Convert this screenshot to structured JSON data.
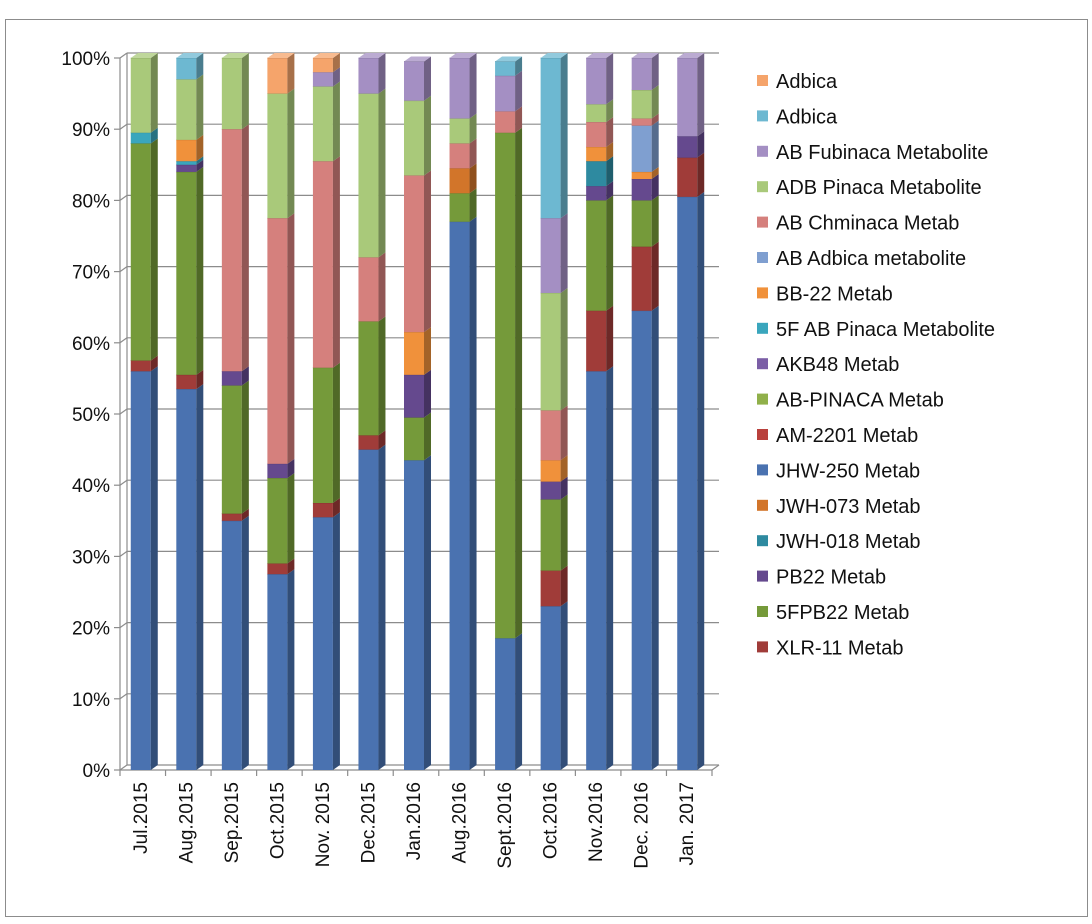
{
  "chart_data": {
    "type": "bar",
    "stacked": true,
    "percent_stacked": true,
    "style": "3d-column",
    "title": "",
    "xlabel": "",
    "ylabel": "",
    "ylim": [
      0,
      100
    ],
    "y_tick_labels": [
      "0%",
      "10%",
      "20%",
      "30%",
      "40%",
      "50%",
      "60%",
      "70%",
      "80%",
      "90%",
      "100%"
    ],
    "grid": "horizontal",
    "legend_position": "right",
    "categories": [
      "Jul.2015",
      "Aug.2015",
      "Sep.2015",
      "Oct.2015",
      "Nov. 2015",
      "Dec.2015",
      "Jan.2016",
      "Aug.2016",
      "Sept.2016",
      "Oct.2016",
      "Nov.2016",
      "Dec. 2016",
      "Jan. 2017"
    ],
    "series": [
      {
        "name": "JHW-250 Metab",
        "color": "#4a72b0",
        "values": [
          56,
          53.5,
          35,
          27.5,
          35.5,
          45,
          43.5,
          77,
          18.5,
          23,
          56,
          64.5,
          80.5
        ]
      },
      {
        "name": "XLR-11 Metab",
        "color": "#a03c39",
        "values": [
          1.5,
          2,
          1,
          1.5,
          2,
          2,
          0,
          0,
          0,
          5,
          8.5,
          9,
          5.5
        ]
      },
      {
        "name": "5FPB22 Metab",
        "color": "#759a3a",
        "values": [
          30.5,
          28.5,
          18,
          12,
          19,
          16,
          6,
          4,
          71,
          10,
          15.5,
          6.5,
          0
        ]
      },
      {
        "name": "PB22 Metab",
        "color": "#65498e",
        "values": [
          0,
          1,
          2,
          2,
          0,
          0,
          6,
          0,
          0,
          2.5,
          2,
          3,
          3
        ]
      },
      {
        "name": "JWH-018 Metab",
        "color": "#2e8aa0",
        "values": [
          0,
          0,
          0,
          0,
          0,
          0,
          0,
          0,
          0,
          0,
          3.5,
          0,
          0
        ]
      },
      {
        "name": "JWH-073 Metab",
        "color": "#d2752a",
        "values": [
          0,
          0,
          0,
          0,
          0,
          0,
          0,
          3.5,
          0,
          0,
          0,
          0,
          0
        ]
      },
      {
        "name": "JHW-250 Metab",
        "color": "#4a72b0",
        "values": [
          0,
          0,
          0,
          0,
          0,
          0,
          0,
          0,
          0,
          0,
          0,
          0,
          0
        ]
      },
      {
        "name": "AM-2201 Metab",
        "color": "#b9403c",
        "values": [
          0,
          0,
          0,
          0,
          0,
          0,
          0,
          0,
          0,
          0,
          0,
          0,
          0
        ]
      },
      {
        "name": "AB-PINACA Metab",
        "color": "#90b04a",
        "values": [
          0,
          0,
          0,
          0,
          0,
          0,
          0,
          0,
          0,
          0,
          0,
          0,
          0
        ]
      },
      {
        "name": "AKB48 Metab",
        "color": "#7b5ea6",
        "values": [
          0,
          0,
          0,
          0,
          0,
          0,
          0,
          0,
          0,
          0,
          0,
          0,
          0
        ]
      },
      {
        "name": "5F AB Pinaca Metabolite",
        "color": "#3aa6bd",
        "values": [
          1.5,
          0.5,
          0,
          0,
          0,
          0,
          0,
          0,
          0,
          0,
          0,
          0,
          0
        ]
      },
      {
        "name": "BB-22 Metab",
        "color": "#f0913b",
        "values": [
          0,
          3,
          0,
          0,
          0,
          0,
          6,
          0,
          0,
          3,
          2,
          1,
          0
        ]
      },
      {
        "name": "AB Adbica metabolite",
        "color": "#7f9fd0",
        "values": [
          0,
          0,
          0,
          0,
          0,
          0,
          0,
          0,
          0,
          0,
          0,
          6.5,
          0
        ]
      },
      {
        "name": "AB Chminaca Metab",
        "color": "#d5807d",
        "values": [
          0,
          0,
          34,
          34.5,
          29,
          9,
          22,
          3.5,
          3,
          7,
          3.5,
          1,
          0
        ]
      },
      {
        "name": "ADB Pinaca Metabolite",
        "color": "#a9c97a",
        "values": [
          10.5,
          8.5,
          10,
          17.5,
          10.5,
          23,
          10.5,
          3.5,
          0,
          16.5,
          2.5,
          4,
          0
        ]
      },
      {
        "name": "AB Fubinaca Metabolite",
        "color": "#a48fc3",
        "values": [
          0,
          0,
          0,
          0,
          2,
          5,
          5.5,
          8.5,
          5,
          10.5,
          6.5,
          4.5,
          11
        ]
      },
      {
        "name": "Adbica",
        "color": "#6db8d1",
        "values": [
          0,
          3,
          0,
          0,
          0,
          0,
          0,
          0,
          2,
          22.5,
          0,
          0,
          0
        ]
      },
      {
        "name": "Adbica",
        "color": "#f5a46b",
        "values": [
          0,
          0,
          0,
          5,
          2,
          0,
          0,
          0,
          0,
          0,
          0,
          0,
          0
        ]
      }
    ],
    "legend": [
      {
        "name": "Adbica",
        "color": "#f5a46b"
      },
      {
        "name": "Adbica",
        "color": "#6db8d1"
      },
      {
        "name": "AB Fubinaca Metabolite",
        "color": "#a48fc3"
      },
      {
        "name": "ADB Pinaca Metabolite",
        "color": "#a9c97a"
      },
      {
        "name": "AB Chminaca Metab",
        "color": "#d5807d"
      },
      {
        "name": "AB Adbica metabolite",
        "color": "#7f9fd0"
      },
      {
        "name": "BB-22 Metab",
        "color": "#f0913b"
      },
      {
        "name": "5F AB Pinaca Metabolite",
        "color": "#3aa6bd"
      },
      {
        "name": "AKB48 Metab",
        "color": "#7b5ea6"
      },
      {
        "name": "AB-PINACA Metab",
        "color": "#90b04a"
      },
      {
        "name": "AM-2201 Metab",
        "color": "#b9403c"
      },
      {
        "name": "JHW-250 Metab",
        "color": "#4a72b0"
      },
      {
        "name": "JWH-073 Metab",
        "color": "#d2752a"
      },
      {
        "name": "JWH-018 Metab",
        "color": "#2e8aa0"
      },
      {
        "name": "PB22 Metab",
        "color": "#65498e"
      },
      {
        "name": "5FPB22 Metab",
        "color": "#759a3a"
      },
      {
        "name": "XLR-11 Metab",
        "color": "#a03c39"
      }
    ]
  }
}
